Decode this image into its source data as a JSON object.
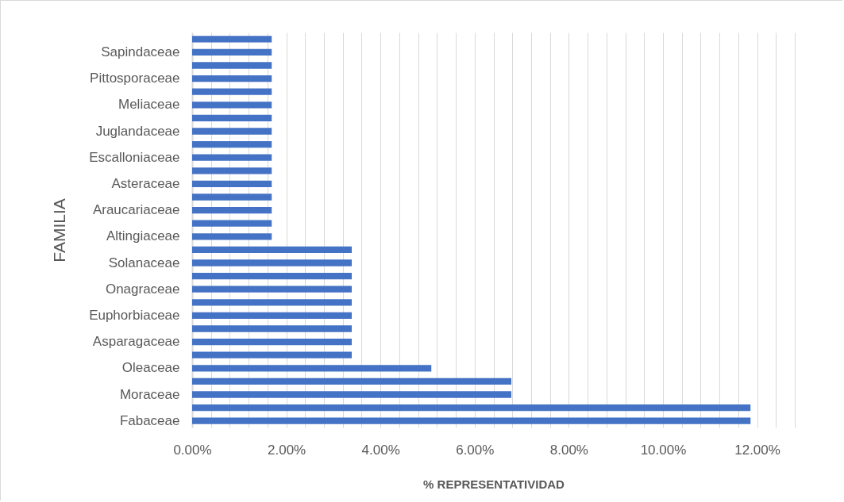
{
  "chart_data": {
    "type": "bar",
    "orientation": "horizontal",
    "xlabel": "% REPRESENTATIVIDAD",
    "ylabel": "FAMILIA",
    "categories": [
      null,
      "Sapindaceae",
      null,
      "Pittosporaceae",
      null,
      "Meliaceae",
      null,
      "Juglandaceae",
      null,
      "Escalloniaceae",
      null,
      "Asteraceae",
      null,
      "Araucariaceae",
      null,
      "Altingiaceae",
      null,
      "Solanaceae",
      null,
      "Onagraceae",
      null,
      "Euphorbiaceae",
      null,
      "Asparagaceae",
      null,
      "Oleaceae",
      null,
      "Moraceae",
      null,
      "Fabaceae"
    ],
    "values": [
      1.69,
      1.69,
      1.69,
      1.69,
      1.69,
      1.69,
      1.69,
      1.69,
      1.69,
      1.69,
      1.69,
      1.69,
      1.69,
      1.69,
      1.69,
      1.69,
      3.39,
      3.39,
      3.39,
      3.39,
      3.39,
      3.39,
      3.39,
      3.39,
      3.39,
      5.08,
      6.78,
      6.78,
      11.86,
      11.86
    ],
    "color": "#4472c4",
    "xlim": [
      0,
      12.8
    ],
    "xticks": [
      {
        "value": 0,
        "label": "0.00%"
      },
      {
        "value": 0.4,
        "label": null
      },
      {
        "value": 0.8,
        "label": null
      },
      {
        "value": 1.2,
        "label": null
      },
      {
        "value": 1.6,
        "label": null
      },
      {
        "value": 2,
        "label": "2.00%"
      },
      {
        "value": 2.4,
        "label": null
      },
      {
        "value": 2.8,
        "label": null
      },
      {
        "value": 3.2,
        "label": null
      },
      {
        "value": 3.6,
        "label": null
      },
      {
        "value": 4,
        "label": "4.00%"
      },
      {
        "value": 4.4,
        "label": null
      },
      {
        "value": 4.8,
        "label": null
      },
      {
        "value": 5.2,
        "label": null
      },
      {
        "value": 5.6,
        "label": null
      },
      {
        "value": 6,
        "label": "6.00%"
      },
      {
        "value": 6.4,
        "label": null
      },
      {
        "value": 6.8,
        "label": null
      },
      {
        "value": 7.2,
        "label": null
      },
      {
        "value": 7.6,
        "label": null
      },
      {
        "value": 8,
        "label": "8.00%"
      },
      {
        "value": 8.4,
        "label": null
      },
      {
        "value": 8.8,
        "label": null
      },
      {
        "value": 9.2,
        "label": null
      },
      {
        "value": 9.6,
        "label": null
      },
      {
        "value": 10,
        "label": "10.00%"
      },
      {
        "value": 10.4,
        "label": null
      },
      {
        "value": 10.8,
        "label": null
      },
      {
        "value": 11.2,
        "label": null
      },
      {
        "value": 11.6,
        "label": null
      },
      {
        "value": 12,
        "label": "12.00%"
      },
      {
        "value": 12.4,
        "label": null
      },
      {
        "value": 12.8,
        "label": null
      }
    ],
    "grid": "x"
  }
}
